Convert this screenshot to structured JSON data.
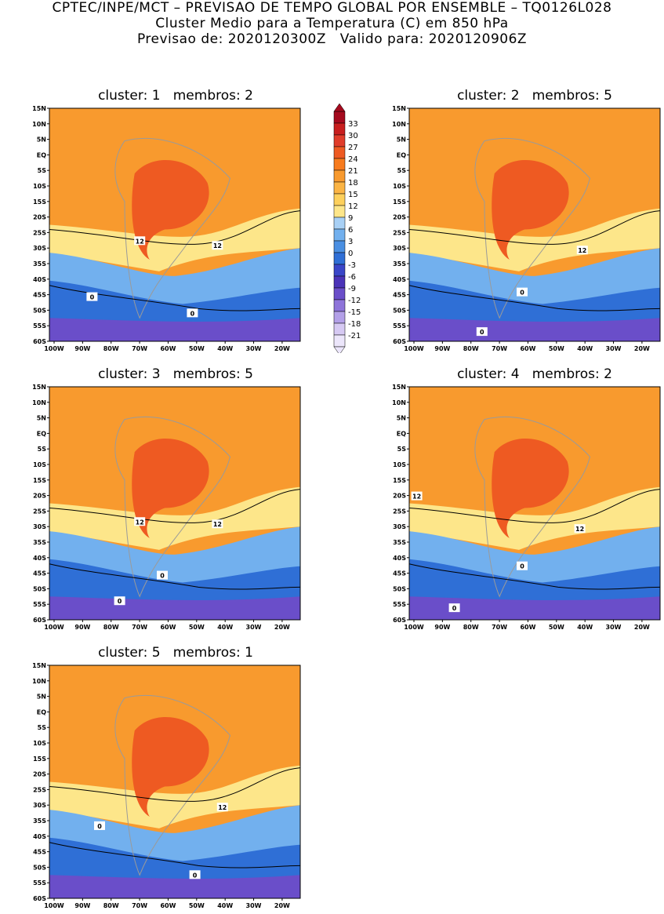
{
  "header": {
    "line1": "CPTEC/INPE/MCT – PREVISAO DE TEMPO GLOBAL POR ENSEMBLE – TQ0126L028",
    "line2": "Cluster Medio para a Temperatura (C) em 850 hPa",
    "line3": "Previsao de: 2020120300Z   Valido para: 2020120906Z"
  },
  "lat_ticks": [
    "15N",
    "10N",
    "5N",
    "EQ",
    "5S",
    "10S",
    "15S",
    "20S",
    "25S",
    "30S",
    "35S",
    "40S",
    "45S",
    "50S",
    "55S",
    "60S"
  ],
  "lon_ticks": [
    "100W",
    "90W",
    "80W",
    "70W",
    "60W",
    "50W",
    "40W",
    "30W",
    "20W"
  ],
  "colorbar": {
    "labels": [
      "33",
      "30",
      "27",
      "24",
      "21",
      "18",
      "15",
      "12",
      "9",
      "6",
      "3",
      "0",
      "-3",
      "-6",
      "-9",
      "-12",
      "-15",
      "-18",
      "-21"
    ],
    "colors": [
      "#a50a1e",
      "#c81e1e",
      "#e03c2a",
      "#ee5a22",
      "#f77b1e",
      "#f89a2e",
      "#fbb444",
      "#fdd05c",
      "#fde68a",
      "#a8d0f5",
      "#72b0ee",
      "#4a8fe2",
      "#2f6fd6",
      "#3a46c8",
      "#4b33b8",
      "#6a4ec9",
      "#8e74da",
      "#b3a0e8",
      "#d6c9f3",
      "#ece6fb"
    ],
    "units": "C"
  },
  "panels": [
    {
      "title": "cluster: 1   membros: 2",
      "contour_labels": [
        "12",
        "12",
        "0",
        "0"
      ]
    },
    {
      "title": "cluster: 2   membros: 5",
      "contour_labels": [
        "12",
        "0",
        "0"
      ]
    },
    {
      "title": "cluster: 3   membros: 5",
      "contour_labels": [
        "12",
        "12",
        "0",
        "0"
      ]
    },
    {
      "title": "cluster: 4   membros: 2",
      "contour_labels": [
        "12",
        "12",
        "0",
        "0"
      ]
    },
    {
      "title": "cluster: 5   membros: 1",
      "contour_labels": [
        "12",
        "0",
        "0"
      ]
    }
  ]
}
